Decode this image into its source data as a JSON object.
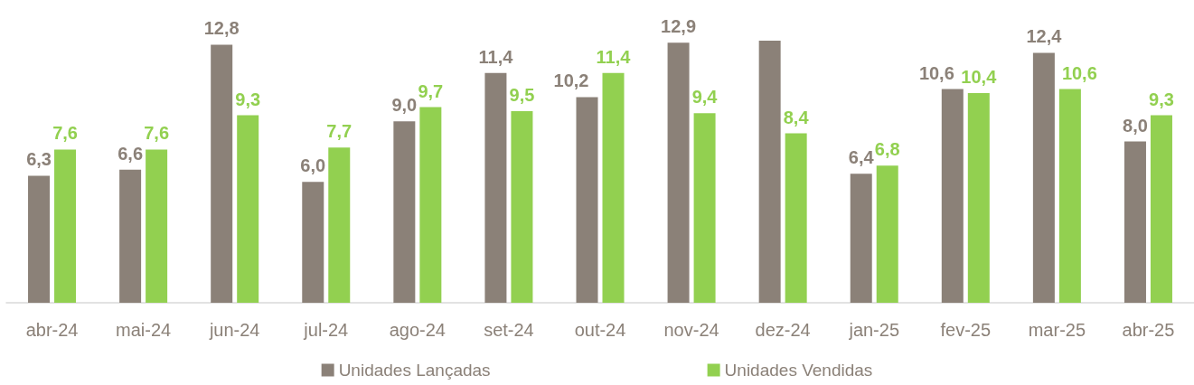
{
  "chart_data": {
    "type": "bar",
    "categories": [
      "abr-24",
      "mai-24",
      "jun-24",
      "jul-24",
      "ago-24",
      "set-24",
      "out-24",
      "nov-24",
      "dez-24",
      "jan-25",
      "fev-25",
      "mar-25",
      "abr-25"
    ],
    "series": [
      {
        "name": "Unidades Lançadas",
        "color": "#8b8178",
        "values": [
          6.3,
          6.6,
          12.8,
          6.0,
          9.0,
          11.4,
          10.2,
          12.9,
          13.0,
          6.4,
          10.6,
          12.4,
          8.0
        ],
        "value_labels": [
          "6,3",
          "6,6",
          "12,8",
          "6,0",
          "9,0",
          "11,4",
          "10,2",
          "12,9",
          null,
          "6,4",
          "10,6",
          "12,4",
          "8,0"
        ]
      },
      {
        "name": "Unidades Vendidas",
        "color": "#92d050",
        "values": [
          7.6,
          7.6,
          9.3,
          7.7,
          9.7,
          9.5,
          11.4,
          9.4,
          8.4,
          6.8,
          10.4,
          10.6,
          9.3
        ],
        "value_labels": [
          "7,6",
          "7,6",
          "9,3",
          "7,7",
          "9,7",
          "9,5",
          "11,4",
          "9,4",
          "8,4",
          "6,8",
          "10,4",
          "10,6",
          "9,3"
        ]
      }
    ],
    "legend": "bottom",
    "tick_labels": "x"
  }
}
